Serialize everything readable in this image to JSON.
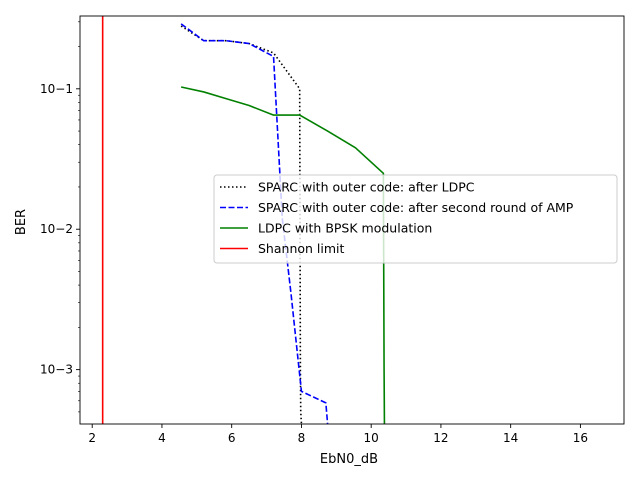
{
  "chart_data": {
    "type": "line",
    "title": "",
    "xlabel": "EbN0_dB",
    "ylabel": "BER",
    "yscale": "log",
    "xlim": [
      1.65,
      17.25
    ],
    "ylim": [
      0.00041,
      0.33
    ],
    "x_ticks": [
      2,
      4,
      6,
      8,
      10,
      12,
      14,
      16
    ],
    "x_tick_labels": [
      "2",
      "4",
      "6",
      "8",
      "10",
      "12",
      "14",
      "16"
    ],
    "y_ticks": [
      0.001,
      0.01,
      0.1
    ],
    "y_tick_labels": [
      "10−3",
      "10−2",
      "10−1"
    ],
    "grid": false,
    "legend_position": "center-right",
    "series": [
      {
        "name": "SPARC with outer code: after LDPC",
        "color": "#000000",
        "style": "dotted",
        "x": [
          4.55,
          5.2,
          5.85,
          6.5,
          7.2,
          7.95,
          7.97,
          7.98,
          8.0
        ],
        "y": [
          0.28,
          0.22,
          0.22,
          0.21,
          0.18,
          0.1,
          0.001,
          0.0005,
          0.00041
        ]
      },
      {
        "name": "SPARC with outer code: after second round of AMP",
        "color": "#0000ff",
        "style": "dashed",
        "x": [
          4.55,
          5.2,
          5.85,
          6.5,
          7.2,
          7.45,
          7.7,
          8.0,
          8.7,
          8.75
        ],
        "y": [
          0.29,
          0.22,
          0.22,
          0.21,
          0.17,
          0.012,
          0.0035,
          0.0007,
          0.00058,
          0.00041
        ]
      },
      {
        "name": "LDPC with BPSK modulation",
        "color": "#008000",
        "style": "solid",
        "x": [
          4.55,
          5.2,
          5.85,
          6.5,
          7.2,
          7.95,
          8.75,
          9.55,
          10.35,
          10.37,
          10.38
        ],
        "y": [
          0.103,
          0.095,
          0.085,
          0.076,
          0.065,
          0.065,
          0.05,
          0.038,
          0.025,
          0.001,
          0.00041
        ]
      },
      {
        "name": "Shannon limit",
        "color": "#ff0000",
        "style": "solid",
        "x": [
          2.3,
          2.3
        ],
        "y": [
          0.00041,
          0.33
        ]
      }
    ]
  }
}
